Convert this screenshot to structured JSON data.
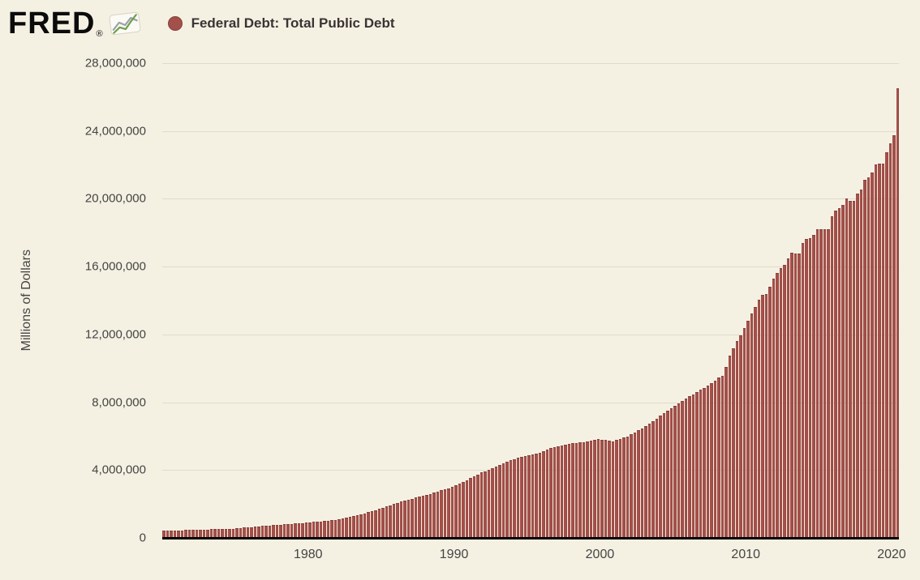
{
  "header": {
    "logo_text": "FRED",
    "registered_mark": "®",
    "legend": {
      "series_label": "Federal Debt: Total Public Debt"
    }
  },
  "colors": {
    "background": "#f4f1e3",
    "gridline": "#dfdbca",
    "axis_line": "#000000",
    "text": "#444444",
    "legend_text": "#3b3333",
    "bar_fill": "#a4504a",
    "bar_edge": "#86403b",
    "logo_green": "#6f9e4e",
    "logo_gray": "#9aa2a8"
  },
  "chart_data": {
    "type": "bar",
    "title": "Federal Debt: Total Public Debt",
    "ylabel": "Millions of Dollars",
    "xlabel": "",
    "legend_position": "top-left",
    "grid": true,
    "ylim": [
      0,
      28000000
    ],
    "x_start": 1970.0,
    "x_end": 2020.5,
    "x_step_years": 0.25,
    "frequency": "quarterly",
    "yticks": [
      {
        "value": 0,
        "label": "0"
      },
      {
        "value": 4000000,
        "label": "4,000,000"
      },
      {
        "value": 8000000,
        "label": "8,000,000"
      },
      {
        "value": 12000000,
        "label": "12,000,000"
      },
      {
        "value": 16000000,
        "label": "16,000,000"
      },
      {
        "value": 20000000,
        "label": "20,000,000"
      },
      {
        "value": 24000000,
        "label": "24,000,000"
      },
      {
        "value": 28000000,
        "label": "28,000,000"
      }
    ],
    "xticks": [
      {
        "value": 1980,
        "label": "1980"
      },
      {
        "value": 1990,
        "label": "1990"
      },
      {
        "value": 2000,
        "label": "2000"
      },
      {
        "value": 2010,
        "label": "2010"
      },
      {
        "value": 2020,
        "label": "2020"
      }
    ],
    "values": [
      375000,
      380000,
      384000,
      389000,
      398000,
      407000,
      415000,
      424000,
      430000,
      437000,
      443000,
      449000,
      454000,
      460000,
      465000,
      470000,
      476000,
      482000,
      487000,
      493000,
      514000,
      535000,
      556000,
      577000,
      596000,
      616000,
      635000,
      654000,
      670000,
      687000,
      703000,
      719000,
      737000,
      754000,
      772000,
      789000,
      803000,
      817000,
      831000,
      845000,
      866000,
      888000,
      909000,
      930000,
      955000,
      980000,
      1004000,
      1029000,
      1071000,
      1113000,
      1155000,
      1197000,
      1251000,
      1304000,
      1358000,
      1411000,
      1474000,
      1537000,
      1600000,
      1663000,
      1734000,
      1805000,
      1875000,
      1946000,
      2013000,
      2081000,
      2148000,
      2215000,
      2269000,
      2324000,
      2378000,
      2432000,
      2495000,
      2558000,
      2621000,
      2684000,
      2751000,
      2819000,
      2886000,
      2953000,
      3056000,
      3159000,
      3262000,
      3365000,
      3474000,
      3584000,
      3693000,
      3802000,
      3896000,
      3990000,
      4083000,
      4177000,
      4267000,
      4357000,
      4446000,
      4536000,
      4602000,
      4668000,
      4734000,
      4800000,
      4847000,
      4895000,
      4942000,
      4989000,
      5073000,
      5156000,
      5240000,
      5323000,
      5368000,
      5413000,
      5457000,
      5502000,
      5530000,
      5558000,
      5586000,
      5614000,
      5655000,
      5695000,
      5736000,
      5776000,
      5748000,
      5719000,
      5691000,
      5662000,
      5732000,
      5803000,
      5873000,
      5943000,
      6059000,
      6175000,
      6290000,
      6406000,
      6554000,
      6702000,
      6850000,
      6998000,
      7148000,
      7297000,
      7447000,
      7596000,
      7740000,
      7883000,
      8027000,
      8170000,
      8298000,
      8425000,
      8553000,
      8680000,
      8817000,
      8955000,
      9092000,
      9229000,
      9438000,
      9492000,
      10025000,
      10700000,
      11127000,
      11545000,
      11910000,
      12311000,
      12773000,
      13202000,
      13562000,
      14025000,
      14270000,
      14343000,
      14790000,
      15223000,
      15582000,
      15856000,
      16066000,
      16433000,
      16771000,
      16738000,
      16738000,
      17352000,
      17601000,
      17633000,
      17824000,
      18141000,
      18152000,
      18152000,
      18151000,
      18922000,
      19265000,
      19382000,
      19573000,
      19977000,
      19846000,
      19845000,
      20245000,
      20493000,
      21090000,
      21195000,
      21516000,
      21974000,
      22028000,
      22023000,
      22719000,
      23201000,
      23687000,
      26478000
    ]
  }
}
